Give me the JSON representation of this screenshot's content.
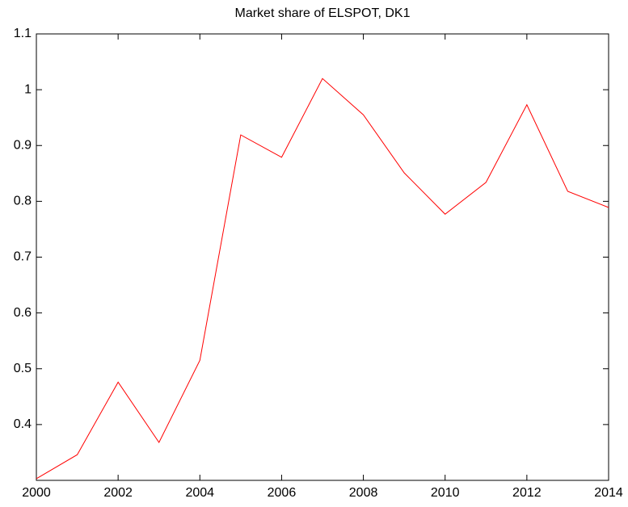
{
  "chart_data": {
    "type": "line",
    "title": "Market share of ELSPOT, DK1",
    "x": [
      2000,
      2001,
      2002,
      2003,
      2004,
      2005,
      2006,
      2007,
      2008,
      2009,
      2010,
      2011,
      2012,
      2013,
      2014
    ],
    "series": [
      {
        "color": "#ff0000",
        "values": [
          0.303,
          0.346,
          0.476,
          0.368,
          0.515,
          0.919,
          0.879,
          1.02,
          0.955,
          0.851,
          0.777,
          0.834,
          0.973,
          0.818,
          0.789
        ]
      }
    ],
    "xlim": [
      2000,
      2014
    ],
    "xticks": [
      2000,
      2002,
      2004,
      2006,
      2008,
      2010,
      2012,
      2014
    ],
    "ylim": [
      0.3,
      1.1
    ],
    "yticks": [
      0.4,
      0.5,
      0.6,
      0.7,
      0.8,
      0.9,
      1,
      1.1
    ],
    "grid": false
  }
}
